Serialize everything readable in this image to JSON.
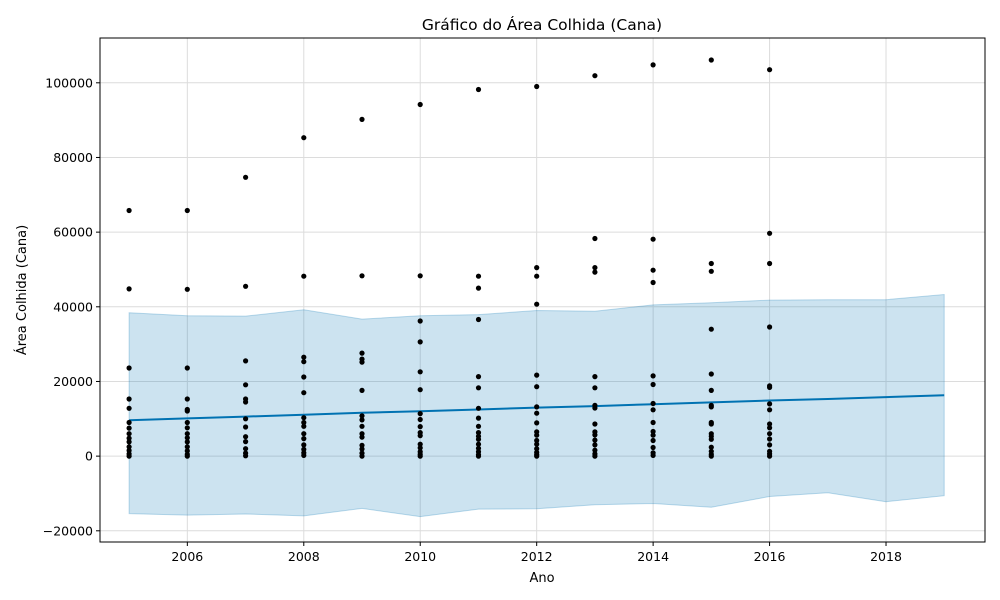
{
  "chart_data": {
    "type": "scatter",
    "title": "Gráfico do Área Colhida (Cana)",
    "xlabel": "Ano",
    "ylabel": "Área Colhida (Cana)",
    "xlim": [
      2004.5,
      2019.7
    ],
    "ylim": [
      -23000,
      112000
    ],
    "xticks": [
      2006,
      2008,
      2010,
      2012,
      2014,
      2016,
      2018
    ],
    "yticks": [
      -20000,
      0,
      20000,
      40000,
      60000,
      80000,
      100000
    ],
    "grid": true,
    "colors": {
      "points": "#000000",
      "trend": "#0072B2",
      "band": "#0072B2"
    },
    "series": [
      {
        "kind": "points",
        "data": [
          [
            2005,
            65800
          ],
          [
            2005,
            44800
          ],
          [
            2005,
            23600
          ],
          [
            2005,
            15300
          ],
          [
            2005,
            12800
          ],
          [
            2005,
            9000
          ],
          [
            2005,
            7500
          ],
          [
            2005,
            6000
          ],
          [
            2005,
            4800
          ],
          [
            2005,
            3800
          ],
          [
            2005,
            2500
          ],
          [
            2005,
            1500
          ],
          [
            2005,
            600
          ],
          [
            2005,
            0
          ],
          [
            2006,
            65800
          ],
          [
            2006,
            44700
          ],
          [
            2006,
            23600
          ],
          [
            2006,
            15300
          ],
          [
            2006,
            12500
          ],
          [
            2006,
            12100
          ],
          [
            2006,
            9000
          ],
          [
            2006,
            7600
          ],
          [
            2006,
            6000
          ],
          [
            2006,
            4900
          ],
          [
            2006,
            3800
          ],
          [
            2006,
            2500
          ],
          [
            2006,
            1400
          ],
          [
            2006,
            500
          ],
          [
            2006,
            0
          ],
          [
            2007,
            74700
          ],
          [
            2007,
            45500
          ],
          [
            2007,
            25500
          ],
          [
            2007,
            19100
          ],
          [
            2007,
            15300
          ],
          [
            2007,
            14500
          ],
          [
            2007,
            10000
          ],
          [
            2007,
            7800
          ],
          [
            2007,
            5200
          ],
          [
            2007,
            3900
          ],
          [
            2007,
            2000
          ],
          [
            2007,
            800
          ],
          [
            2007,
            100
          ],
          [
            2008,
            85300
          ],
          [
            2008,
            48200
          ],
          [
            2008,
            26500
          ],
          [
            2008,
            25300
          ],
          [
            2008,
            21200
          ],
          [
            2008,
            17000
          ],
          [
            2008,
            10300
          ],
          [
            2008,
            9000
          ],
          [
            2008,
            8000
          ],
          [
            2008,
            6000
          ],
          [
            2008,
            4700
          ],
          [
            2008,
            3000
          ],
          [
            2008,
            1800
          ],
          [
            2008,
            900
          ],
          [
            2008,
            200
          ],
          [
            2009,
            90200
          ],
          [
            2009,
            48300
          ],
          [
            2009,
            27600
          ],
          [
            2009,
            26000
          ],
          [
            2009,
            25200
          ],
          [
            2009,
            17600
          ],
          [
            2009,
            10800
          ],
          [
            2009,
            9700
          ],
          [
            2009,
            8000
          ],
          [
            2009,
            6000
          ],
          [
            2009,
            5100
          ],
          [
            2009,
            2900
          ],
          [
            2009,
            1900
          ],
          [
            2009,
            800
          ],
          [
            2009,
            0
          ],
          [
            2010,
            94200
          ],
          [
            2010,
            48300
          ],
          [
            2010,
            36200
          ],
          [
            2010,
            30600
          ],
          [
            2010,
            22600
          ],
          [
            2010,
            17800
          ],
          [
            2010,
            11400
          ],
          [
            2010,
            9800
          ],
          [
            2010,
            7900
          ],
          [
            2010,
            6300
          ],
          [
            2010,
            5500
          ],
          [
            2010,
            3200
          ],
          [
            2010,
            2200
          ],
          [
            2010,
            1200
          ],
          [
            2010,
            500
          ],
          [
            2010,
            0
          ],
          [
            2011,
            98200
          ],
          [
            2011,
            48200
          ],
          [
            2011,
            45000
          ],
          [
            2011,
            36600
          ],
          [
            2011,
            21300
          ],
          [
            2011,
            18300
          ],
          [
            2011,
            12800
          ],
          [
            2011,
            10200
          ],
          [
            2011,
            8000
          ],
          [
            2011,
            6300
          ],
          [
            2011,
            5300
          ],
          [
            2011,
            4500
          ],
          [
            2011,
            3200
          ],
          [
            2011,
            2100
          ],
          [
            2011,
            1200
          ],
          [
            2011,
            400
          ],
          [
            2011,
            0
          ],
          [
            2012,
            99000
          ],
          [
            2012,
            50500
          ],
          [
            2012,
            48200
          ],
          [
            2012,
            40700
          ],
          [
            2012,
            21700
          ],
          [
            2012,
            18600
          ],
          [
            2012,
            13200
          ],
          [
            2012,
            11500
          ],
          [
            2012,
            8900
          ],
          [
            2012,
            6500
          ],
          [
            2012,
            5600
          ],
          [
            2012,
            4200
          ],
          [
            2012,
            3200
          ],
          [
            2012,
            2000
          ],
          [
            2012,
            1000
          ],
          [
            2012,
            400
          ],
          [
            2012,
            0
          ],
          [
            2013,
            101900
          ],
          [
            2013,
            58300
          ],
          [
            2013,
            50500
          ],
          [
            2013,
            49300
          ],
          [
            2013,
            21300
          ],
          [
            2013,
            18300
          ],
          [
            2013,
            13600
          ],
          [
            2013,
            12900
          ],
          [
            2013,
            8600
          ],
          [
            2013,
            6500
          ],
          [
            2013,
            5700
          ],
          [
            2013,
            4300
          ],
          [
            2013,
            3000
          ],
          [
            2013,
            1600
          ],
          [
            2013,
            600
          ],
          [
            2013,
            0
          ],
          [
            2014,
            104800
          ],
          [
            2014,
            58100
          ],
          [
            2014,
            49800
          ],
          [
            2014,
            46500
          ],
          [
            2014,
            21500
          ],
          [
            2014,
            19200
          ],
          [
            2014,
            14100
          ],
          [
            2014,
            12400
          ],
          [
            2014,
            9000
          ],
          [
            2014,
            6600
          ],
          [
            2014,
            5600
          ],
          [
            2014,
            4200
          ],
          [
            2014,
            2300
          ],
          [
            2014,
            900
          ],
          [
            2014,
            200
          ],
          [
            2015,
            106100
          ],
          [
            2015,
            51600
          ],
          [
            2015,
            49500
          ],
          [
            2015,
            34000
          ],
          [
            2015,
            22000
          ],
          [
            2015,
            17600
          ],
          [
            2015,
            13600
          ],
          [
            2015,
            13200
          ],
          [
            2015,
            9000
          ],
          [
            2015,
            8600
          ],
          [
            2015,
            6000
          ],
          [
            2015,
            5300
          ],
          [
            2015,
            4500
          ],
          [
            2015,
            2400
          ],
          [
            2015,
            1300
          ],
          [
            2015,
            500
          ],
          [
            2015,
            0
          ],
          [
            2016,
            103500
          ],
          [
            2016,
            59700
          ],
          [
            2016,
            51600
          ],
          [
            2016,
            34600
          ],
          [
            2016,
            18800
          ],
          [
            2016,
            18400
          ],
          [
            2016,
            14000
          ],
          [
            2016,
            12400
          ],
          [
            2016,
            8600
          ],
          [
            2016,
            7600
          ],
          [
            2016,
            6000
          ],
          [
            2016,
            4600
          ],
          [
            2016,
            3000
          ],
          [
            2016,
            1300
          ],
          [
            2016,
            600
          ],
          [
            2016,
            0
          ]
        ]
      },
      {
        "kind": "trend",
        "x": [
          2005,
          2006,
          2007,
          2008,
          2009,
          2010,
          2011,
          2012,
          2013,
          2014,
          2015,
          2016,
          2017,
          2018,
          2019
        ],
        "values": [
          9600,
          10100,
          10600,
          11100,
          11600,
          12000,
          12500,
          13000,
          13400,
          13900,
          14400,
          14900,
          15300,
          15800,
          16300
        ]
      },
      {
        "kind": "band",
        "x": [
          2005,
          2006,
          2007,
          2008,
          2009,
          2010,
          2011,
          2012,
          2013,
          2014,
          2015,
          2016,
          2017,
          2018,
          2019
        ],
        "upper": [
          38400,
          37600,
          37500,
          39200,
          36700,
          37600,
          37900,
          39000,
          38800,
          40500,
          41100,
          41800,
          41900,
          41900,
          43300
        ],
        "lower": [
          -15400,
          -15800,
          -15500,
          -16000,
          -14000,
          -16200,
          -14200,
          -14100,
          -13000,
          -12700,
          -13700,
          -10800,
          -9800,
          -12200,
          -10600
        ]
      }
    ]
  }
}
